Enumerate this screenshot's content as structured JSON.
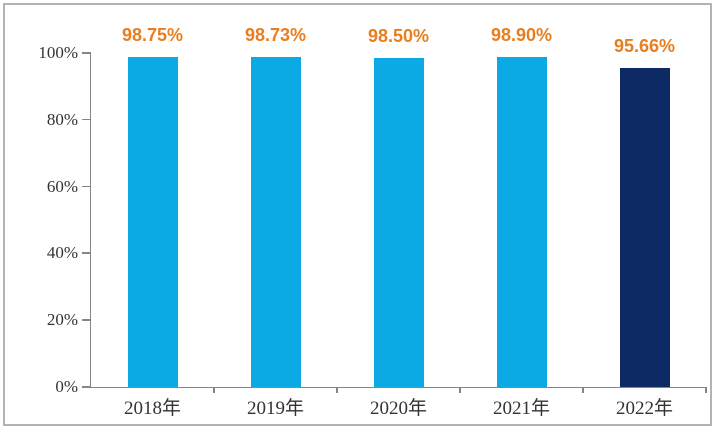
{
  "chart_data": {
    "type": "bar",
    "title": "",
    "xlabel": "",
    "ylabel": "",
    "categories": [
      "2018年",
      "2019年",
      "2020年",
      "2021年",
      "2022年"
    ],
    "values": [
      98.75,
      98.73,
      98.5,
      98.9,
      95.66
    ],
    "value_labels": [
      "98.75%",
      "98.73%",
      "98.50%",
      "98.90%",
      "95.66%"
    ],
    "ylim": [
      0,
      100
    ],
    "yticks": [
      0,
      20,
      40,
      60,
      80,
      100
    ],
    "ytick_labels": [
      "0%",
      "20%",
      "40%",
      "60%",
      "80%",
      "100%"
    ],
    "grid": false,
    "legend": false,
    "bar_colors": [
      "#0caae4",
      "#0caae4",
      "#0caae4",
      "#0caae4",
      "#0e2a64"
    ],
    "value_label_color": "#e87e1e",
    "axis_color": "#858585",
    "tick_label_color": "#333333",
    "frame_border_color": "#b3b3b3",
    "background_color": "#ffffff"
  }
}
